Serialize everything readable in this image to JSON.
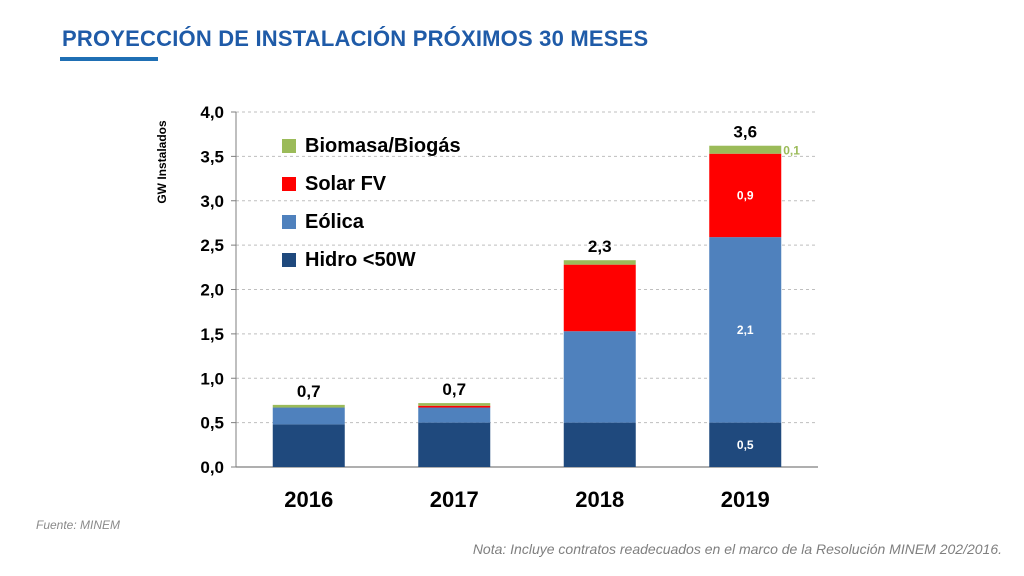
{
  "header": {
    "title": "PROYECCIÓN DE INSTALACIÓN PRÓXIMOS 30 MESES"
  },
  "footer": {
    "source": "Fuente: MINEM",
    "note": "Nota: Incluye contratos readecuados en el marco de la Resolución MINEM 202/2016."
  },
  "colors": {
    "accent": "#1f5ba8",
    "hidro": "#1f497d",
    "eolica": "#4f81bd",
    "solar": "#ff0000",
    "biomasa": "#9bbb59"
  },
  "chart_data": {
    "type": "bar",
    "stacked": true,
    "title": "",
    "xlabel": "",
    "ylabel": "GW Instalados",
    "ylim": [
      0,
      4.0
    ],
    "yticks": [
      "0,0",
      "0,5",
      "1,0",
      "1,5",
      "2,0",
      "2,5",
      "3,0",
      "3,5",
      "4,0"
    ],
    "categories": [
      "2016",
      "2017",
      "2018",
      "2019"
    ],
    "series": [
      {
        "name": "Hidro <50W",
        "color": "#1f497d",
        "values": [
          0.48,
          0.5,
          0.5,
          0.5
        ]
      },
      {
        "name": "Eólica",
        "color": "#4f81bd",
        "values": [
          0.19,
          0.17,
          1.03,
          2.09
        ]
      },
      {
        "name": "Solar FV",
        "color": "#ff0000",
        "values": [
          0.0,
          0.02,
          0.75,
          0.94
        ]
      },
      {
        "name": "Biomasa/Biogás",
        "color": "#9bbb59",
        "values": [
          0.03,
          0.03,
          0.05,
          0.09
        ]
      }
    ],
    "totals": [
      "0,7",
      "0,7",
      "2,3",
      "3,6"
    ],
    "segment_labels_2019": {
      "hidro": "0,5",
      "eolica": "2,1",
      "solar": "0,9",
      "biomasa": "0,1"
    },
    "legend_placement": "top-left",
    "grid": true
  }
}
